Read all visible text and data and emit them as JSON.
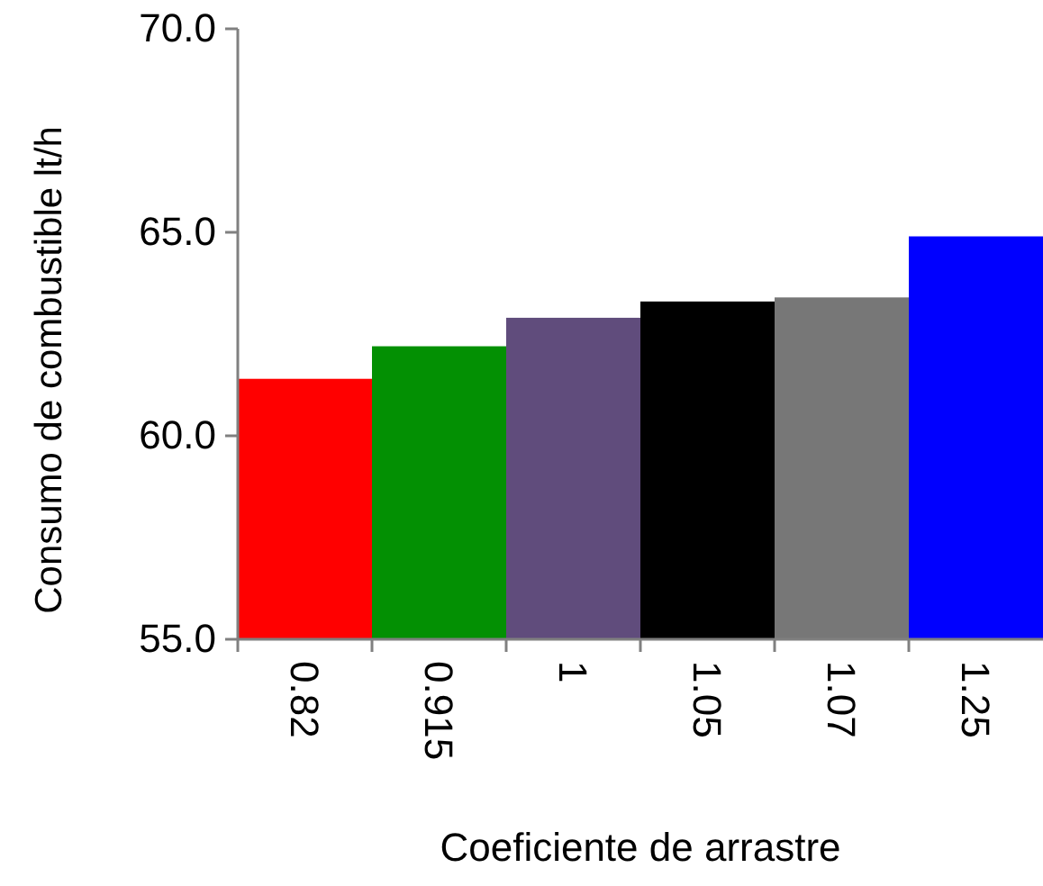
{
  "chart_data": {
    "type": "bar",
    "xlabel": "Coeficiente de arrastre",
    "ylabel": "Consumo de combustible lt/h",
    "categories": [
      "0.82",
      "0.915",
      "1",
      "1.05",
      "1.07",
      "1.25"
    ],
    "values": [
      61.4,
      62.2,
      62.9,
      63.3,
      63.4,
      64.9
    ],
    "colors": [
      "#ff0000",
      "#039003",
      "#604c7c",
      "#000000",
      "#777777",
      "#0000ff"
    ],
    "ylim": [
      55,
      70
    ],
    "yticks": [
      {
        "value": 55,
        "label": "55.0"
      },
      {
        "value": 60,
        "label": "60.0"
      },
      {
        "value": 65,
        "label": "65.0"
      },
      {
        "value": 70,
        "label": "70.0"
      }
    ],
    "grid": false
  }
}
